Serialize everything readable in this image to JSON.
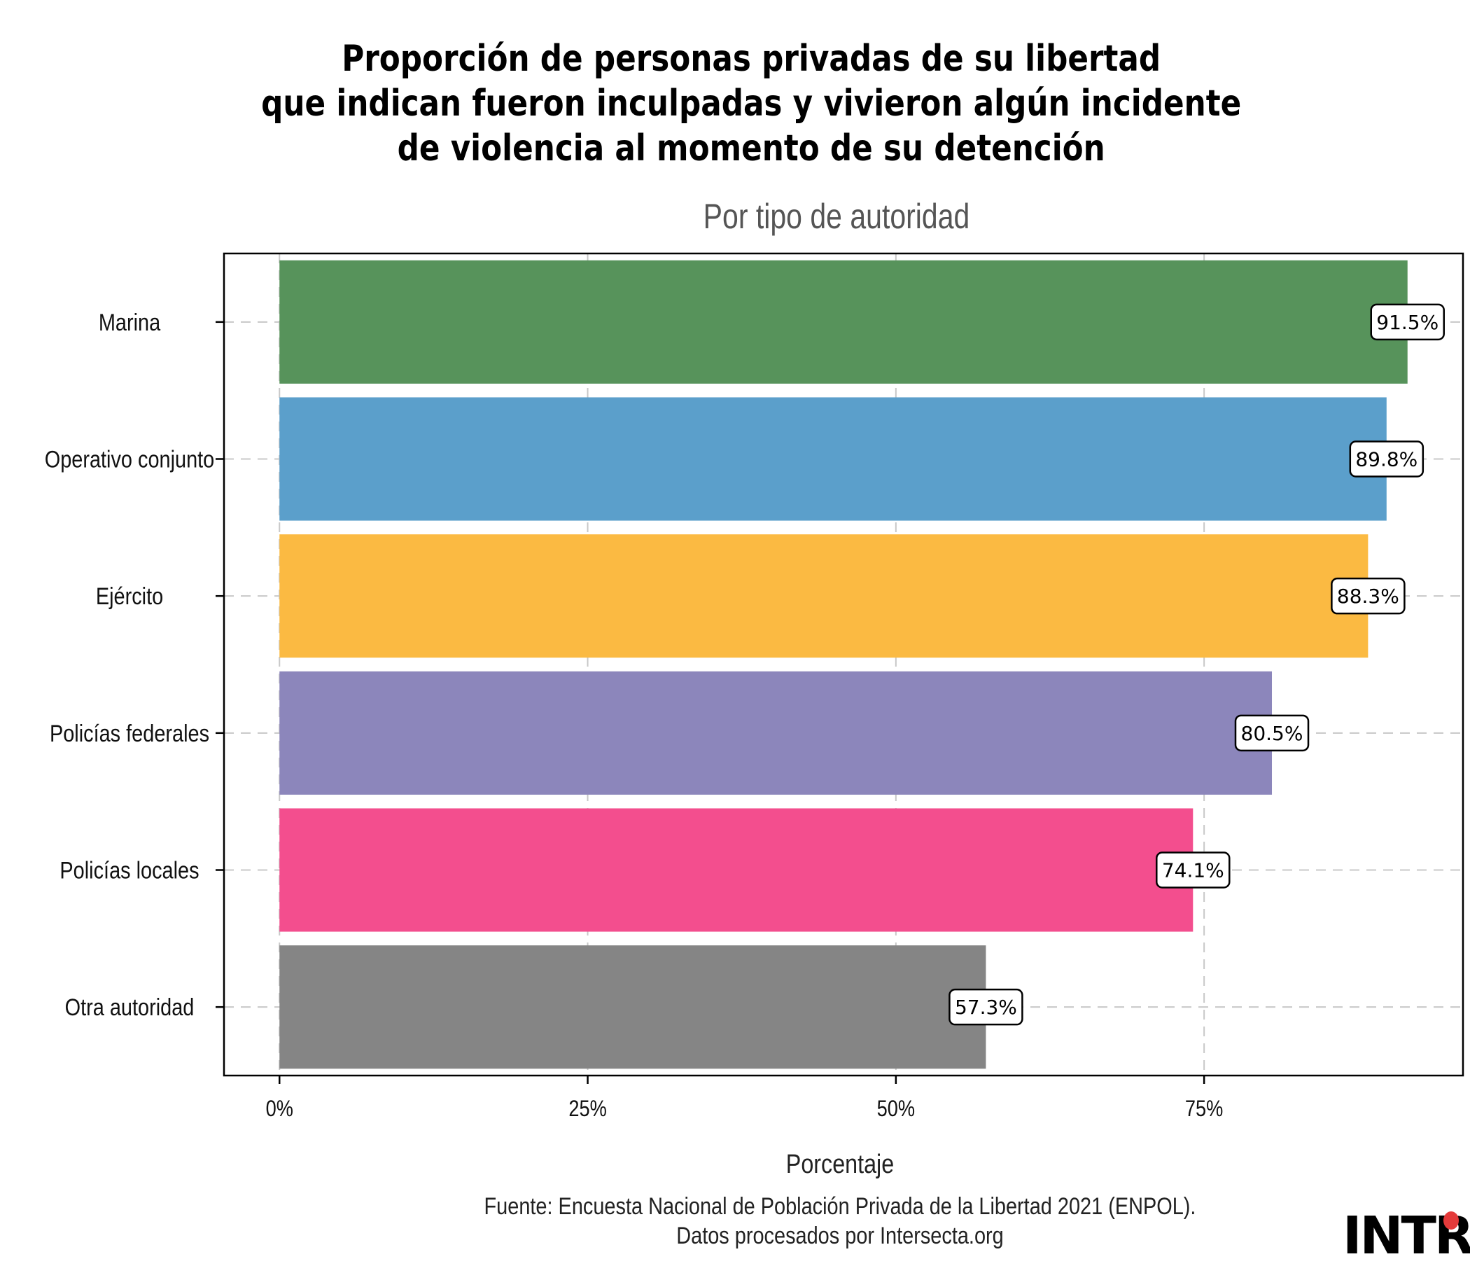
{
  "chart_data": {
    "type": "bar",
    "orientation": "horizontal",
    "title": [
      "Proporción de personas privadas de su libertad",
      "que indican fueron inculpadas y vivieron algún incidente",
      "de violencia al momento de su detención"
    ],
    "subtitle": "Por tipo de autoridad",
    "xlabel": "Porcentaje",
    "ylabel": "",
    "categories": [
      "Marina",
      "Operativo conjunto",
      "Ejército",
      "Policías federales",
      "Policías locales",
      "Otra autoridad"
    ],
    "values": [
      91.5,
      89.8,
      88.3,
      80.5,
      74.1,
      57.3
    ],
    "value_labels": [
      "91.5%",
      "89.8%",
      "88.3%",
      "80.5%",
      "74.1%",
      "57.3%"
    ],
    "colors": [
      "#57935b",
      "#5b9fcb",
      "#fbba42",
      "#8c86bb",
      "#f34e8e",
      "#858585"
    ],
    "xlim": [
      -4.5,
      96
    ],
    "xticks": [
      0,
      25,
      50,
      75
    ],
    "xtick_labels": [
      "0%",
      "25%",
      "50%",
      "75%"
    ],
    "grid": true,
    "caption": [
      "Fuente: Encuesta Nacional de Población Privada de la Libertad 2021 (ENPOL).",
      "Datos procesados por Intersecta.org"
    ]
  },
  "logo": "INTR"
}
